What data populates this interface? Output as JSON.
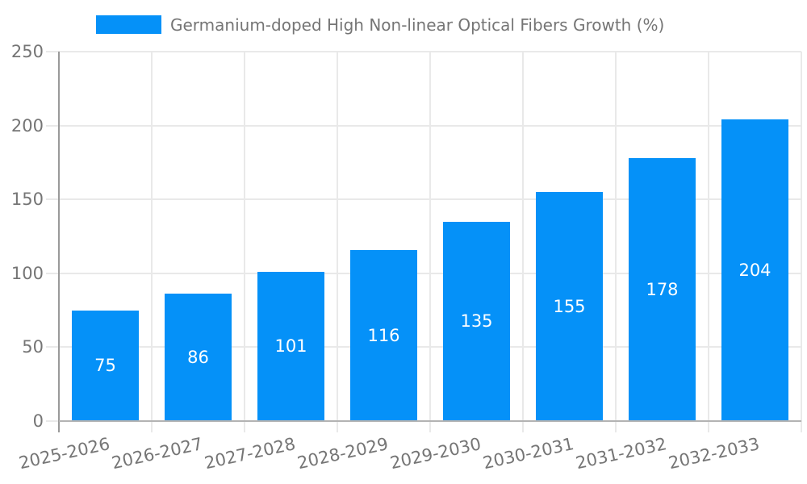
{
  "chart_data": {
    "type": "bar",
    "title": "Germanium-doped High Non-linear Optical Fibers Growth (%)",
    "categories": [
      "2025-2026",
      "2026-2027",
      "2027-2028",
      "2028-2029",
      "2029-2030",
      "2030-2031",
      "2031-2032",
      "2032-2033"
    ],
    "values": [
      75,
      86,
      101,
      116,
      135,
      155,
      178,
      204
    ],
    "xlabel": "",
    "ylabel": "",
    "ylim": [
      0,
      250
    ],
    "y_ticks": [
      0,
      50,
      100,
      150,
      200,
      250
    ],
    "grid": true,
    "legend_position": "top",
    "bar_labels_inside": true,
    "colors": {
      "bar": "#0591f8",
      "bar_value_text": "#ffffff",
      "axis_text": "#757575",
      "legend_text": "#757575",
      "gridline": "#e9e9e9",
      "y_axis_line": "#9a9a9a",
      "baseline": "#b3b3b3",
      "background": "#ffffff"
    }
  }
}
